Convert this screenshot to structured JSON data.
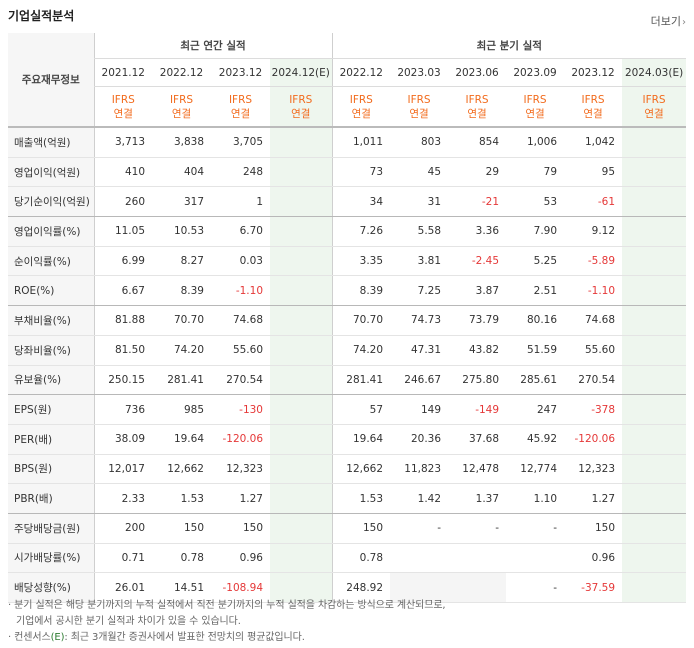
{
  "title": "기업실적분석",
  "more_label": "더보기",
  "header": {
    "row_label": "주요재무정보",
    "annual_group": "최근 연간 실적",
    "quarter_group": "최근 분기 실적",
    "periods": [
      "2021.12",
      "2022.12",
      "2023.12",
      "2024.12(E)",
      "2022.12",
      "2023.03",
      "2023.06",
      "2023.09",
      "2023.12",
      "2024.03(E)"
    ],
    "standard_top": "IFRS",
    "standard_bottom": "연결"
  },
  "rows": [
    {
      "label": "매출액(억원)",
      "values": [
        "3,713",
        "3,838",
        "3,705",
        "",
        "1,011",
        "803",
        "854",
        "1,006",
        "1,042",
        ""
      ]
    },
    {
      "label": "영업이익(억원)",
      "values": [
        "410",
        "404",
        "248",
        "",
        "73",
        "45",
        "29",
        "79",
        "95",
        ""
      ]
    },
    {
      "label": "당기순이익(억원)",
      "values": [
        "260",
        "317",
        "1",
        "",
        "34",
        "31",
        "-21",
        "53",
        "-61",
        ""
      ]
    },
    {
      "label": "영업이익률(%)",
      "values": [
        "11.05",
        "10.53",
        "6.70",
        "",
        "7.26",
        "5.58",
        "3.36",
        "7.90",
        "9.12",
        ""
      ]
    },
    {
      "label": "순이익률(%)",
      "values": [
        "6.99",
        "8.27",
        "0.03",
        "",
        "3.35",
        "3.81",
        "-2.45",
        "5.25",
        "-5.89",
        ""
      ]
    },
    {
      "label": "ROE(%)",
      "values": [
        "6.67",
        "8.39",
        "-1.10",
        "",
        "8.39",
        "7.25",
        "3.87",
        "2.51",
        "-1.10",
        ""
      ]
    },
    {
      "label": "부채비율(%)",
      "values": [
        "81.88",
        "70.70",
        "74.68",
        "",
        "70.70",
        "74.73",
        "73.79",
        "80.16",
        "74.68",
        ""
      ]
    },
    {
      "label": "당좌비율(%)",
      "values": [
        "81.50",
        "74.20",
        "55.60",
        "",
        "74.20",
        "47.31",
        "43.82",
        "51.59",
        "55.60",
        ""
      ]
    },
    {
      "label": "유보율(%)",
      "values": [
        "250.15",
        "281.41",
        "270.54",
        "",
        "281.41",
        "246.67",
        "275.80",
        "285.61",
        "270.54",
        ""
      ]
    },
    {
      "label": "EPS(원)",
      "values": [
        "736",
        "985",
        "-130",
        "",
        "57",
        "149",
        "-149",
        "247",
        "-378",
        ""
      ]
    },
    {
      "label": "PER(배)",
      "values": [
        "38.09",
        "19.64",
        "-120.06",
        "",
        "19.64",
        "20.36",
        "37.68",
        "45.92",
        "-120.06",
        ""
      ]
    },
    {
      "label": "BPS(원)",
      "values": [
        "12,017",
        "12,662",
        "12,323",
        "",
        "12,662",
        "11,823",
        "12,478",
        "12,774",
        "12,323",
        ""
      ]
    },
    {
      "label": "PBR(배)",
      "values": [
        "2.33",
        "1.53",
        "1.27",
        "",
        "1.53",
        "1.42",
        "1.37",
        "1.10",
        "1.27",
        ""
      ]
    },
    {
      "label": "주당배당금(원)",
      "values": [
        "200",
        "150",
        "150",
        "",
        "150",
        "-",
        "-",
        "-",
        "150",
        ""
      ]
    },
    {
      "label": "시가배당률(%)",
      "values": [
        "0.71",
        "0.78",
        "0.96",
        "",
        "0.78",
        "",
        "",
        "",
        "0.96",
        ""
      ]
    },
    {
      "label": "배당성향(%)",
      "values": [
        "26.01",
        "14.51",
        "-108.94",
        "",
        "248.92",
        "",
        "",
        "-",
        "-37.59",
        ""
      ]
    }
  ],
  "notes": {
    "line1": "분기 실적은 해당 분기까지의 누적 실적에서 직전 분기까지의 누적 실적을 차감하는 방식으로 계산되므로,",
    "line2": "기업에서 공시한 분기 실적과 차이가 있을 수 있습니다.",
    "line3_prefix": "컨센서스",
    "line3_mark": "(E)",
    "line3_suffix": ": 최근 3개월간 증권사에서 발표한 전망치의 평균값입니다."
  }
}
